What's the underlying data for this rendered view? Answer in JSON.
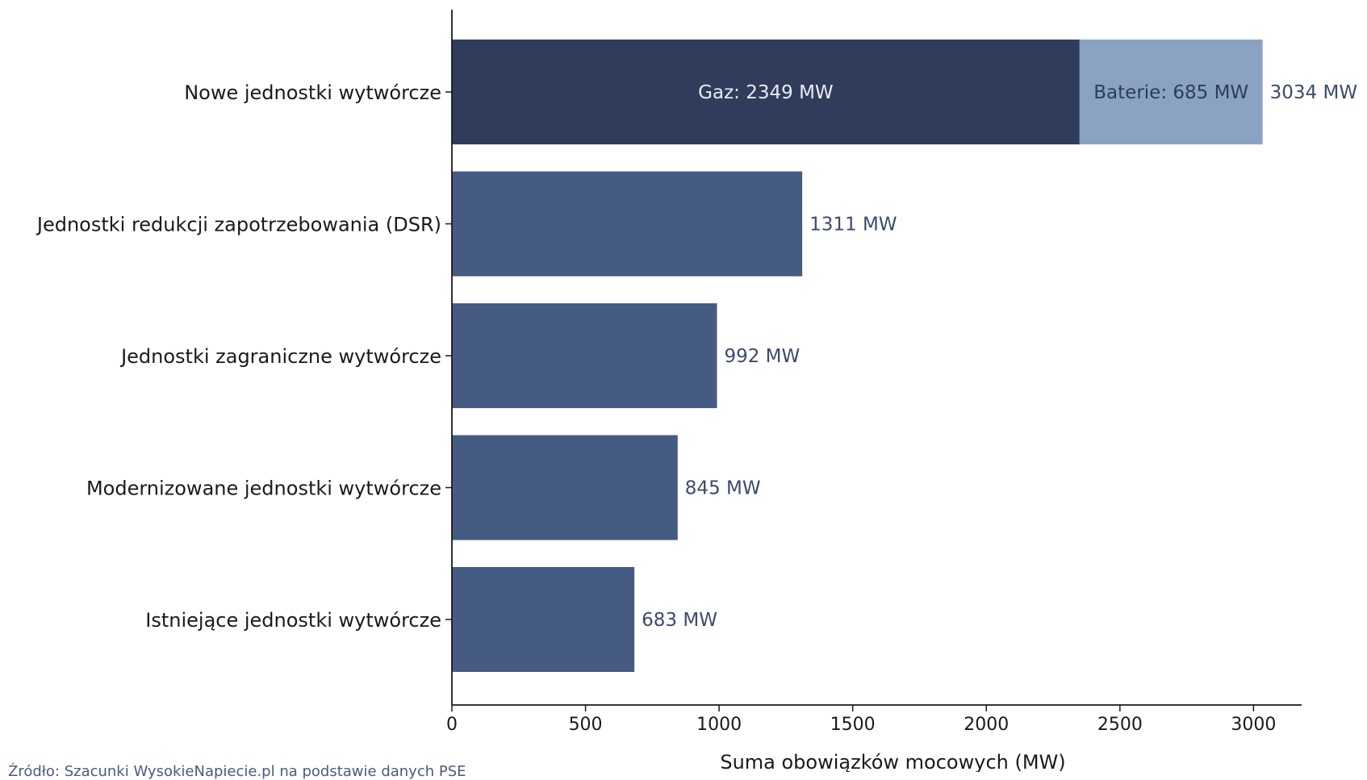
{
  "chart_data": {
    "type": "bar",
    "orientation": "horizontal",
    "categories": [
      "Nowe jednostki wytwórcze",
      "Jednostki redukcji zapotrzebowania (DSR)",
      "Jednostki zagraniczne wytwórcze",
      "Modernizowane jednostki wytwórcze",
      "Istniejące jednostki wytwórcze"
    ],
    "values": [
      3034,
      1311,
      992,
      845,
      683
    ],
    "value_labels": [
      "3034 MW",
      "1311 MW",
      "992 MW",
      "845 MW",
      "683 MW"
    ],
    "stacked_first_bar": [
      {
        "value": 2349,
        "label": "Gaz: 2349 MW",
        "color": "#303c5c"
      },
      {
        "value": 685,
        "label": "Baterie: 685 MW",
        "color": "#8aa3c2"
      }
    ],
    "bar_color": "#465b82",
    "xlabel": "Suma obowiązków mocowych (MW)",
    "xlim": [
      0,
      3180
    ],
    "xticks": [
      0,
      500,
      1000,
      1500,
      2000,
      2500,
      3000
    ],
    "grid": false
  },
  "source": "Źródło: Szacunki WysokieNapiecie.pl na podstawie danych PSE"
}
